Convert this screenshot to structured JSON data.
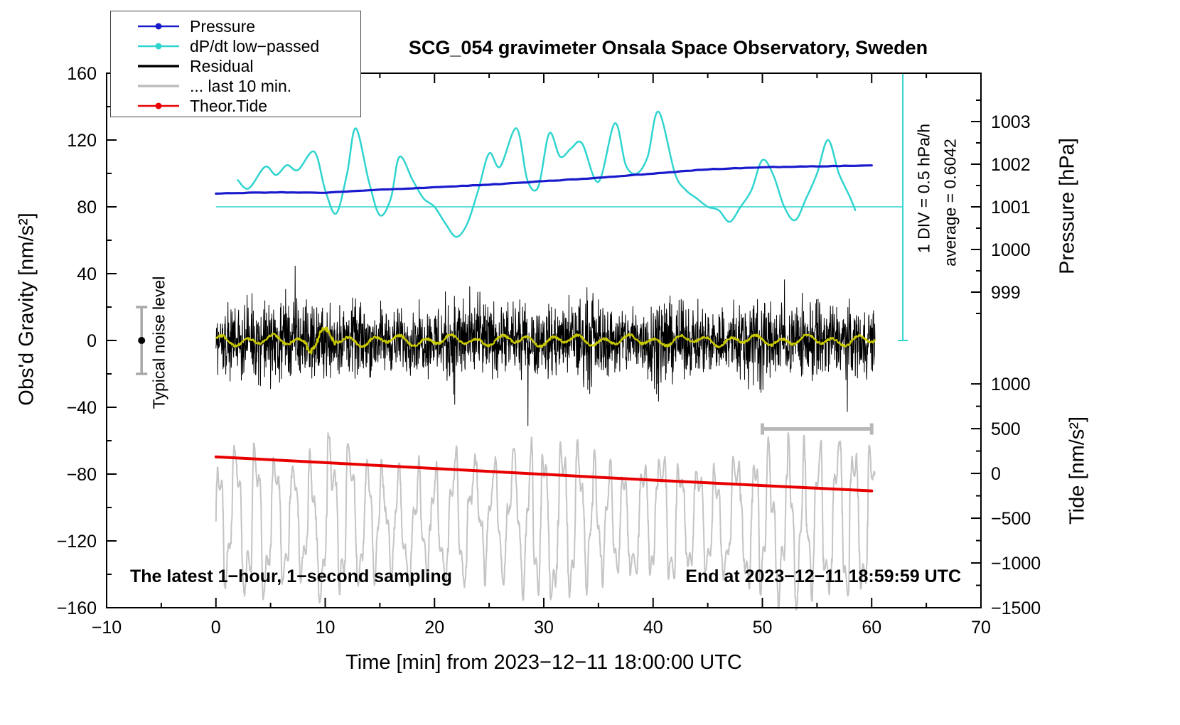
{
  "title": "SCG_054 gravimeter Onsala Space Observatory, Sweden",
  "legend": {
    "items": [
      {
        "label": "Pressure",
        "color": "#1a1acd",
        "style": "line-dot"
      },
      {
        "label": "dP/dt low−passed",
        "color": "#2fd4cf",
        "style": "line-dot"
      },
      {
        "label": "Residual",
        "color": "#000000",
        "style": "line"
      },
      {
        "label": "... last 10 min.",
        "color": "#bdbdbd",
        "style": "line"
      },
      {
        "label": "Theor.Tide",
        "color": "#e80000",
        "style": "line-dot"
      }
    ]
  },
  "annotations": {
    "div_scale": "1 DIV = 0.5 hPa/h",
    "average": "average = 0.6042",
    "noise_label": "Typical noise level",
    "sampling_note": "The latest 1−hour, 1−second sampling",
    "end_time": "End at 2023−12−11 18:59:59 UTC"
  },
  "axes": {
    "x": {
      "label": "Time [min] from 2023−12−11 18:00:00 UTC",
      "min": -10,
      "max": 70,
      "major_ticks": [
        -10,
        0,
        10,
        20,
        30,
        40,
        50,
        60,
        70
      ],
      "tick_labels": [
        "−10",
        "0",
        "10",
        "20",
        "30",
        "40",
        "50",
        "60",
        "70"
      ],
      "minor_step": 5
    },
    "gravity": {
      "label": "Obs'd Gravity [nm/s²]",
      "min": -160,
      "max": 160,
      "major_ticks": [
        160,
        120,
        80,
        40,
        0,
        -40,
        -80,
        -120,
        -160
      ],
      "tick_labels": [
        "160",
        "120",
        "80",
        "40",
        "0",
        "−40",
        "−80",
        "−120",
        "−160"
      ],
      "minor_step": 20
    },
    "pressure": {
      "label": "Pressure [hPa]",
      "major_ticks": [
        1003,
        1002,
        1001,
        1000,
        999
      ],
      "tick_labels": [
        "1003",
        "1002",
        "1001",
        "1000",
        "999"
      ],
      "minor_ticks": [
        1003.5,
        1002.5,
        1001.5,
        1000.5,
        999.5,
        998.5
      ],
      "anchor_hpa": 1001,
      "anchor_gravity": 80,
      "gravity_units_per_hpa": 25.53
    },
    "tide": {
      "label": "Tide [nm/s²]",
      "major_ticks": [
        1000,
        500,
        0,
        -500,
        -1000,
        -1500
      ],
      "tick_labels": [
        "1000",
        "500",
        "0",
        "−500",
        "−1000",
        "−1500"
      ],
      "minor_ticks": [
        750,
        250,
        -250,
        -750,
        -1250
      ],
      "anchor_tide": 0,
      "anchor_gravity": -79.6,
      "gravity_units_per_tide_unit": 0.0536
    }
  },
  "chart_data": {
    "type": "line",
    "title": "SCG_054 gravimeter Onsala Space Observatory, Sweden",
    "x_unit": "minutes from 2023-12-11 18:00:00 UTC",
    "x_range_data": [
      0,
      60.3
    ],
    "series": {
      "pressure": {
        "unit": "hPa",
        "x": [
          0,
          5,
          10,
          15,
          20,
          25,
          30,
          35,
          40,
          45,
          50,
          55,
          60
        ],
        "values": [
          1001.31,
          1001.34,
          1001.33,
          1001.4,
          1001.46,
          1001.52,
          1001.6,
          1001.68,
          1001.78,
          1001.88,
          1001.93,
          1001.95,
          1001.97
        ]
      },
      "dpdt_lowpassed": {
        "unit": "plotted on gravity axis; 1 DIV (40 nm/s²) = 0.5 hPa/h, mean line at 80 nm/s² = average 0.6042 hPa/h",
        "mean_line_gravity": 80,
        "x": [
          2,
          3,
          4.5,
          5.5,
          6.5,
          7.5,
          9,
          10,
          11,
          12,
          12.8,
          14,
          15,
          16,
          16.8,
          18,
          19,
          20,
          21,
          22,
          23,
          24,
          25,
          26,
          27.5,
          28.5,
          29.5,
          30.5,
          31.5,
          32.5,
          33.5,
          35,
          36.5,
          37.5,
          38.5,
          39.5,
          40.5,
          42,
          43,
          44,
          45,
          46,
          47,
          48,
          49,
          50,
          51,
          52,
          53,
          54,
          55,
          56,
          57,
          58,
          58.5
        ],
        "values": [
          96,
          91,
          104,
          99,
          105,
          102,
          113,
          90,
          76,
          100,
          127,
          95,
          75,
          85,
          110,
          96,
          85,
          80,
          70,
          62,
          70,
          90,
          112,
          104,
          127,
          96,
          92,
          124,
          110,
          115,
          118,
          95,
          130,
          105,
          100,
          110,
          137,
          100,
          90,
          85,
          80,
          78,
          71,
          80,
          90,
          108,
          99,
          80,
          72,
          85,
          100,
          120,
          100,
          86,
          78
        ]
      },
      "residual": {
        "unit": "nm/s²",
        "mean": 0,
        "max_excursion": 62,
        "envelope_t": [
          0,
          2,
          4,
          6,
          8,
          10,
          12,
          14,
          16,
          18,
          20,
          21,
          22,
          24,
          26,
          28,
          30,
          32,
          33,
          34,
          35,
          36,
          38,
          40,
          41,
          42,
          44,
          46,
          48,
          49,
          50,
          52,
          54,
          55,
          56,
          58,
          60,
          60.3
        ],
        "envelope_amp": [
          26,
          30,
          32,
          38,
          34,
          30,
          32,
          30,
          28,
          26,
          30,
          38,
          40,
          34,
          30,
          30,
          30,
          32,
          38,
          42,
          34,
          30,
          30,
          38,
          40,
          32,
          28,
          30,
          34,
          44,
          38,
          30,
          32,
          40,
          34,
          30,
          30,
          28
        ]
      },
      "residual_lowpassed": {
        "unit": "nm/s²",
        "mean": 0,
        "amplitude": 3.5,
        "burst_window": [
          8.3,
          11
        ]
      },
      "last_10_min": {
        "unit": "plotted on gravity axis",
        "center": -108,
        "period_min": 1.6,
        "envelope_t": [
          0,
          2,
          4,
          6,
          8,
          10,
          12,
          14,
          16,
          18,
          20,
          22,
          24,
          26,
          28,
          30,
          31,
          33,
          35,
          37,
          39,
          41,
          43,
          45,
          47,
          48,
          50,
          52,
          54,
          56,
          58,
          60.3
        ],
        "envelope_amp": [
          30,
          36,
          40,
          32,
          30,
          44,
          40,
          30,
          26,
          30,
          28,
          34,
          30,
          28,
          35,
          42,
          46,
          40,
          30,
          28,
          32,
          36,
          30,
          28,
          30,
          40,
          36,
          42,
          38,
          40,
          42,
          40
        ]
      },
      "theor_tide": {
        "unit": "nm/s² on tide axis",
        "x": [
          0,
          10,
          20,
          30,
          40,
          50,
          60
        ],
        "values": [
          185,
          120,
          55,
          -10,
          -75,
          -135,
          -195
        ]
      }
    },
    "markers": {
      "noise_bar": {
        "x": -6.8,
        "center_gravity": 0,
        "half_range": 20
      },
      "ten_min_scalebar": {
        "x_start": 50,
        "x_end": 60,
        "gravity_y": -53
      },
      "mean_dpdt_line": {
        "gravity_y": 80,
        "x_start": 0,
        "x_end": 62.85
      },
      "dpdt_scale_bar": {
        "x": 62.85,
        "gravity_start": 0,
        "gravity_end": 160
      }
    },
    "colors": {
      "pressure": "#1a1acd",
      "dpdt": "#2fd4cf",
      "residual": "#000000",
      "residual_lowpassed": "#c9c900",
      "last_10_min": "#c4c4c4",
      "theor_tide": "#e80000",
      "noise_bar": "#a8a8a8",
      "scalebar": "#b8b8b8",
      "frame": "#000000"
    }
  }
}
